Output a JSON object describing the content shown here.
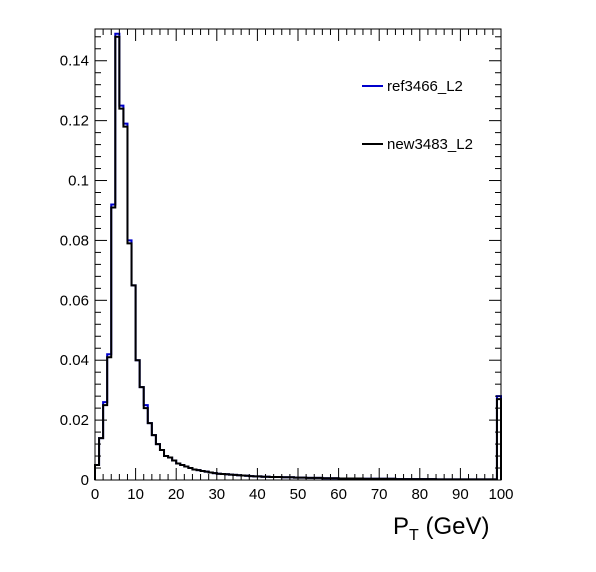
{
  "chart_data": {
    "type": "line",
    "title": "",
    "xlabel": "P",
    "xlabel_sub": "T",
    "xlabel_unit": " (GeV)",
    "ylabel": "",
    "xlim": [
      0,
      100
    ],
    "ylim": [
      0,
      0.1506
    ],
    "bin_width": 1,
    "grid": false,
    "legend_position": "top-right",
    "x_ticks": [
      0,
      10,
      20,
      30,
      40,
      50,
      60,
      70,
      80,
      90,
      100
    ],
    "x_tick_labels": [
      "0",
      "10",
      "20",
      "30",
      "40",
      "50",
      "60",
      "70",
      "80",
      "90",
      "100"
    ],
    "y_ticks": [
      0,
      0.02,
      0.04,
      0.06,
      0.08,
      0.1,
      0.12,
      0.14
    ],
    "y_tick_labels": [
      "0",
      "0.02",
      "0.04",
      "0.06",
      "0.08",
      "0.1",
      "0.12",
      "0.14"
    ],
    "series": [
      {
        "name": "ref3466_L2",
        "color": "#0000cc",
        "values": [
          0.005,
          0.014,
          0.026,
          0.042,
          0.092,
          0.149,
          0.125,
          0.119,
          0.08,
          0.065,
          0.04,
          0.031,
          0.025,
          0.019,
          0.015,
          0.012,
          0.01,
          0.008,
          0.0075,
          0.0065,
          0.0055,
          0.005,
          0.0045,
          0.004,
          0.0035,
          0.0033,
          0.003,
          0.0028,
          0.0025,
          0.0023,
          0.0021,
          0.002,
          0.0019,
          0.0018,
          0.0017,
          0.0016,
          0.0015,
          0.0014,
          0.0013,
          0.0012,
          0.0012,
          0.0011,
          0.0011,
          0.001,
          0.001,
          0.001,
          0.0009,
          0.0009,
          0.0009,
          0.0008,
          0.0008,
          0.0008,
          0.0007,
          0.0007,
          0.0007,
          0.0007,
          0.0006,
          0.0006,
          0.0006,
          0.0006,
          0.0005,
          0.0005,
          0.0005,
          0.0005,
          0.0005,
          0.0005,
          0.0004,
          0.0004,
          0.0004,
          0.0004,
          0.0004,
          0.0004,
          0.0004,
          0.0004,
          0.0003,
          0.0003,
          0.0003,
          0.0003,
          0.0003,
          0.0003,
          0.0003,
          0.0003,
          0.0003,
          0.0003,
          0.0002,
          0.0002,
          0.0002,
          0.0002,
          0.0002,
          0.0002,
          0.0002,
          0.0002,
          0.0002,
          0.0002,
          0.0002,
          0.0002,
          0.0002,
          0.0002,
          0.0002,
          0.028
        ]
      },
      {
        "name": "new3483_L2",
        "color": "#000000",
        "values": [
          0.005,
          0.014,
          0.025,
          0.041,
          0.091,
          0.148,
          0.124,
          0.118,
          0.079,
          0.065,
          0.04,
          0.031,
          0.024,
          0.019,
          0.015,
          0.012,
          0.01,
          0.008,
          0.0075,
          0.0065,
          0.0055,
          0.005,
          0.0045,
          0.004,
          0.0035,
          0.0033,
          0.003,
          0.0028,
          0.0025,
          0.0023,
          0.0021,
          0.002,
          0.0019,
          0.0018,
          0.0017,
          0.0016,
          0.0015,
          0.0014,
          0.0013,
          0.0012,
          0.0012,
          0.0011,
          0.0011,
          0.001,
          0.001,
          0.001,
          0.0009,
          0.0009,
          0.0009,
          0.0008,
          0.0008,
          0.0008,
          0.0007,
          0.0007,
          0.0007,
          0.0007,
          0.0006,
          0.0006,
          0.0006,
          0.0006,
          0.0005,
          0.0005,
          0.0005,
          0.0005,
          0.0005,
          0.0005,
          0.0004,
          0.0004,
          0.0004,
          0.0004,
          0.0004,
          0.0004,
          0.0004,
          0.0004,
          0.0003,
          0.0003,
          0.0003,
          0.0003,
          0.0003,
          0.0003,
          0.0003,
          0.0003,
          0.0003,
          0.0003,
          0.0002,
          0.0002,
          0.0002,
          0.0002,
          0.0002,
          0.0002,
          0.0002,
          0.0002,
          0.0002,
          0.0002,
          0.0002,
          0.0002,
          0.0002,
          0.0002,
          0.0002,
          0.027
        ]
      }
    ]
  }
}
